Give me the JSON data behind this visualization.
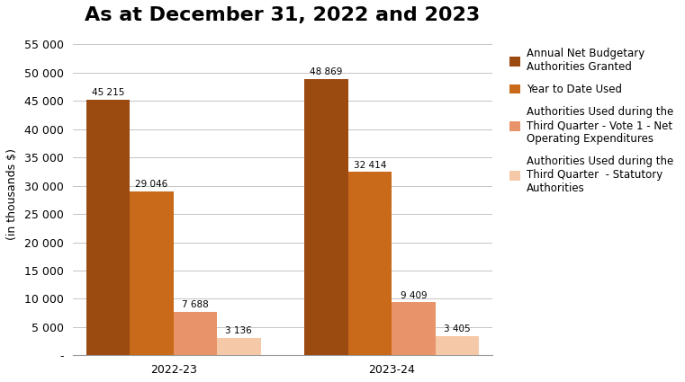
{
  "title": "As at December 31, 2022 and 2023",
  "ylabel": "(in thousands $)",
  "categories": [
    "2022-23",
    "2023-24"
  ],
  "series": [
    {
      "label": "Annual Net Budgetary\nAuthorities Granted",
      "values": [
        45215,
        48869
      ],
      "color": "#9B4A10"
    },
    {
      "label": "Year to Date Used",
      "values": [
        29046,
        32414
      ],
      "color": "#C96A1A"
    },
    {
      "label": "Authorities Used during the\nThird Quarter - Vote 1 - Net\nOperating Expenditures",
      "values": [
        7688,
        9409
      ],
      "color": "#E8936A"
    },
    {
      "label": "Authorities Used during the\nThird Quarter  - Statutory\nAuthorities",
      "values": [
        3136,
        3405
      ],
      "color": "#F5C8A8"
    }
  ],
  "ylim": [
    0,
    57000
  ],
  "yticks": [
    0,
    5000,
    10000,
    15000,
    20000,
    25000,
    30000,
    35000,
    40000,
    45000,
    50000,
    55000
  ],
  "ytick_labels": [
    "-",
    "5 000",
    "10 000",
    "15 000",
    "20 000",
    "25 000",
    "30 000",
    "35 000",
    "40 000",
    "45 000",
    "50 000",
    "55 000"
  ],
  "bar_width": 0.13,
  "data_label_fontsize": 7.5,
  "title_fontsize": 16,
  "axis_label_fontsize": 9,
  "tick_fontsize": 9,
  "legend_fontsize": 8.5,
  "background_color": "#ffffff",
  "group_centers": [
    0.3,
    0.95
  ]
}
